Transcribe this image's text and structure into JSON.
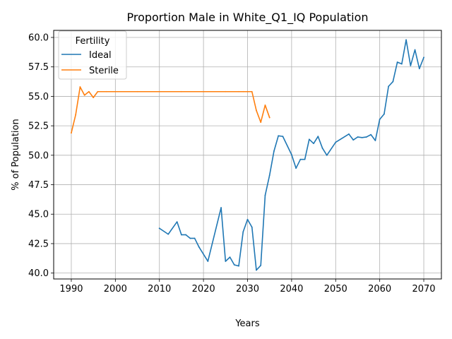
{
  "chart_data": {
    "type": "line",
    "title": "Proportion Male in White_Q1_IQ Population",
    "xlabel": "Years",
    "ylabel": "% of Population",
    "xlim": [
      1986,
      2074
    ],
    "ylim": [
      39.5,
      60.6
    ],
    "xticks": [
      1990,
      2000,
      2010,
      2020,
      2030,
      2040,
      2050,
      2060,
      2070
    ],
    "yticks": [
      40.0,
      42.5,
      45.0,
      47.5,
      50.0,
      52.5,
      55.0,
      57.5,
      60.0
    ],
    "ytick_labels": [
      "40.0",
      "42.5",
      "45.0",
      "47.5",
      "50.0",
      "52.5",
      "55.0",
      "57.5",
      "60.0"
    ],
    "grid": true,
    "legend": {
      "title": "Fertility",
      "position": "top-left"
    },
    "series": [
      {
        "name": "Ideal",
        "color": "#1f77b4",
        "x": [
          2010,
          2012,
          2014,
          2015,
          2016,
          2017,
          2018,
          2019,
          2021,
          2024,
          2025,
          2026,
          2027,
          2028,
          2029,
          2030,
          2031,
          2032,
          2033,
          2034,
          2035,
          2036,
          2037,
          2038,
          2040,
          2041,
          2042,
          2043,
          2044,
          2045,
          2046,
          2047,
          2048,
          2050,
          2053,
          2054,
          2055,
          2056,
          2057,
          2058,
          2059,
          2060,
          2061,
          2062,
          2063,
          2064,
          2065,
          2066,
          2067,
          2068,
          2069,
          2070
        ],
        "y": [
          43.8,
          43.3,
          44.35,
          43.25,
          43.25,
          42.95,
          42.95,
          42.2,
          41.0,
          45.55,
          41.0,
          41.35,
          40.7,
          40.6,
          43.5,
          44.55,
          43.9,
          40.25,
          40.65,
          46.6,
          48.3,
          50.35,
          51.65,
          51.6,
          50.05,
          48.9,
          49.65,
          49.65,
          51.35,
          51.0,
          51.6,
          50.6,
          50.0,
          51.1,
          51.8,
          51.3,
          51.55,
          51.5,
          51.55,
          51.75,
          51.25,
          53.05,
          53.5,
          55.85,
          56.25,
          57.9,
          57.75,
          59.8,
          57.6,
          58.95,
          57.35,
          58.3
        ]
      },
      {
        "name": "Sterile",
        "color": "#ff7f0e",
        "x": [
          1990,
          1991,
          1992,
          1993,
          1994,
          1995,
          1996,
          1998,
          2000,
          2005,
          2010,
          2015,
          2020,
          2025,
          2028,
          2029,
          2030,
          2031,
          2032,
          2033,
          2034,
          2035
        ],
        "y": [
          51.9,
          53.45,
          55.8,
          55.1,
          55.4,
          54.9,
          55.4,
          55.4,
          55.4,
          55.4,
          55.4,
          55.4,
          55.4,
          55.4,
          55.4,
          55.4,
          55.4,
          55.4,
          53.8,
          52.8,
          54.25,
          53.2
        ]
      }
    ]
  }
}
